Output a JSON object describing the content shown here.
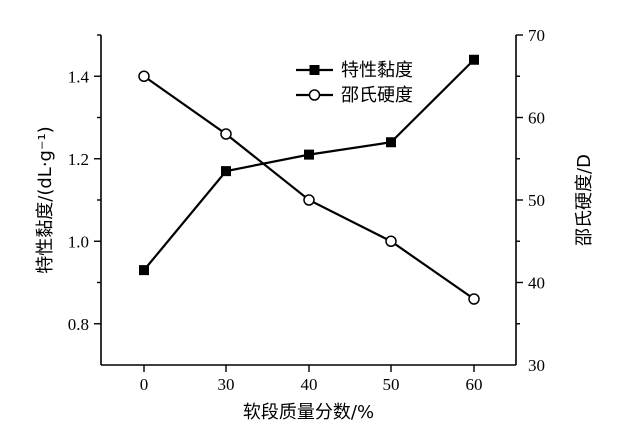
{
  "chart_data": {
    "type": "line",
    "categories": [
      "0",
      "30",
      "40",
      "50",
      "60"
    ],
    "xlabel": "软段质量分数/%",
    "y_left": {
      "label": "特性黏度/(dL·g⁻¹)",
      "range": [
        0.7,
        1.5
      ],
      "ticks": [
        "0.8",
        "1.0",
        "1.2",
        "1.4"
      ],
      "tick_values": [
        0.8,
        1.0,
        1.2,
        1.4
      ]
    },
    "y_right": {
      "label": "邵氏硬度/D",
      "range": [
        30,
        70
      ],
      "ticks": [
        "30",
        "40",
        "50",
        "60",
        "70"
      ],
      "tick_values": [
        30,
        40,
        50,
        60,
        70
      ]
    },
    "series": [
      {
        "name": "特性黏度",
        "axis": "left",
        "marker": "filled-square",
        "values": [
          0.93,
          1.17,
          1.21,
          1.24,
          1.44
        ]
      },
      {
        "name": "邵氏硬度",
        "axis": "right",
        "marker": "open-circle",
        "values": [
          65,
          58,
          50,
          45,
          38
        ]
      }
    ],
    "legend_position": "top-right",
    "grid": false
  }
}
